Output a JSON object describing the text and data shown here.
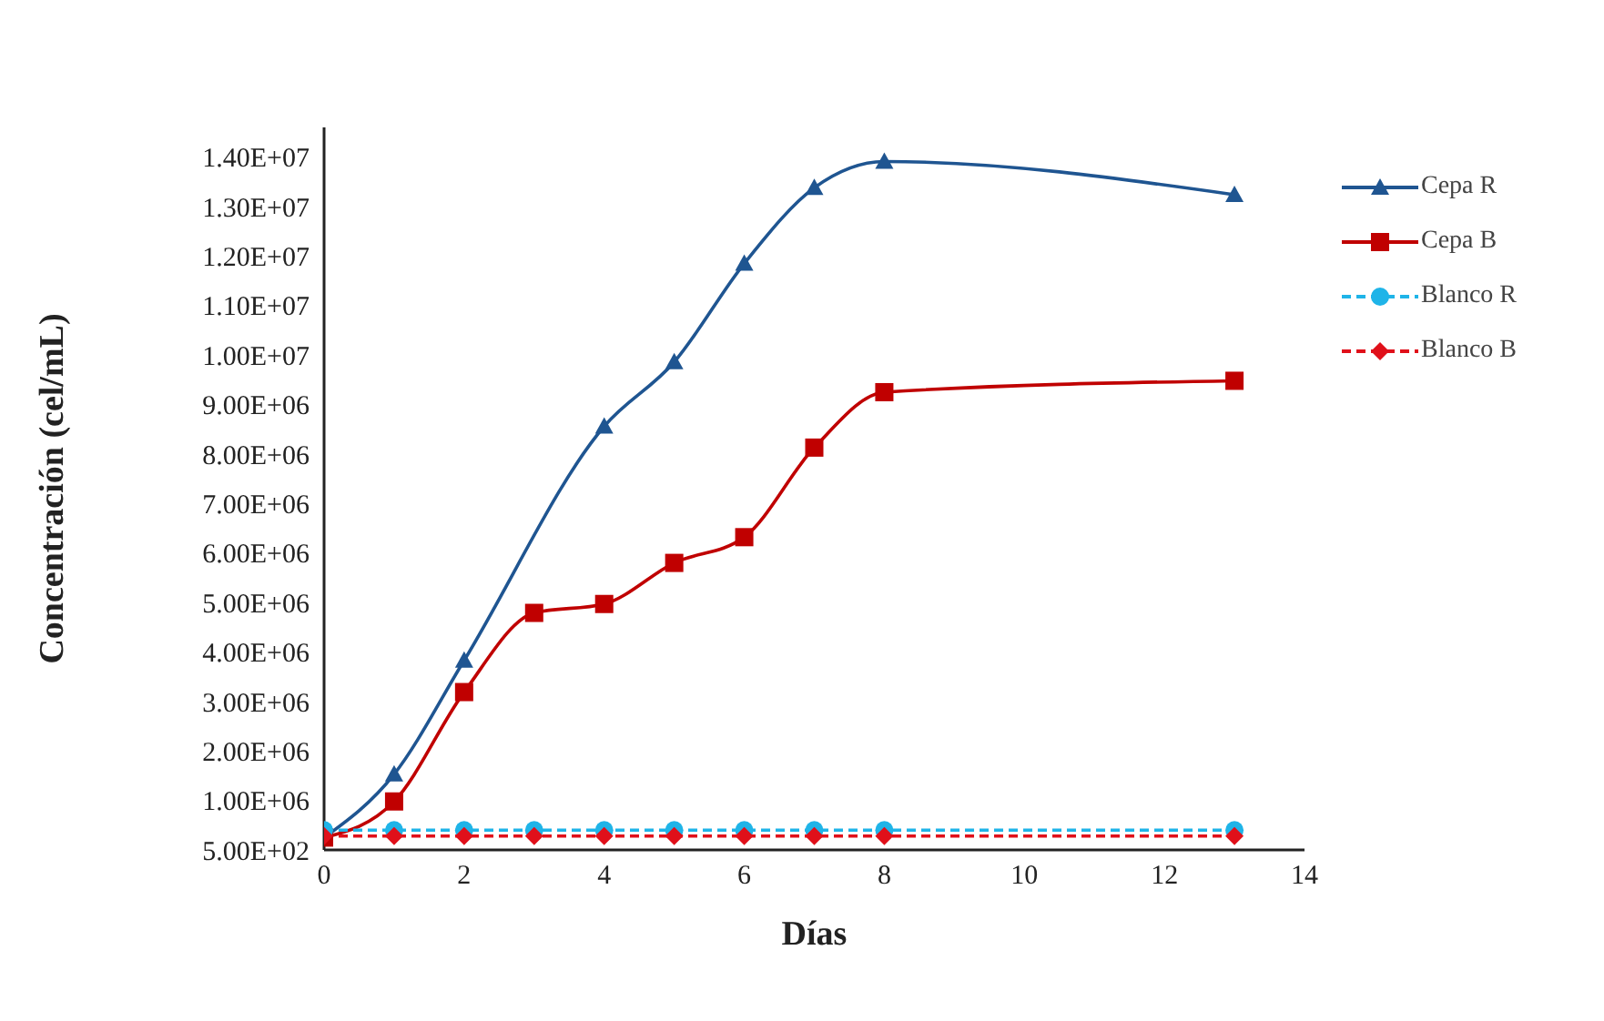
{
  "chart_data": {
    "type": "line",
    "xlabel": "Días",
    "ylabel": "Concentración (cel/mL)",
    "x": [
      0,
      1,
      2,
      3,
      4,
      5,
      6,
      7,
      8,
      13
    ],
    "xlim": [
      0,
      14
    ],
    "xticks": [
      0,
      2,
      4,
      6,
      8,
      10,
      12,
      14
    ],
    "ylim": [
      500,
      14600000
    ],
    "yticks": [
      {
        "value": 500,
        "label": "5.00E+02"
      },
      {
        "value": 1000000,
        "label": "1.00E+06"
      },
      {
        "value": 2000000,
        "label": "2.00E+06"
      },
      {
        "value": 3000000,
        "label": "3.00E+06"
      },
      {
        "value": 4000000,
        "label": "4.00E+06"
      },
      {
        "value": 5000000,
        "label": "5.00E+06"
      },
      {
        "value": 6000000,
        "label": "6.00E+06"
      },
      {
        "value": 7000000,
        "label": "7.00E+06"
      },
      {
        "value": 8000000,
        "label": "8.00E+06"
      },
      {
        "value": 9000000,
        "label": "9.00E+06"
      },
      {
        "value": 10000000,
        "label": "1.00E+07"
      },
      {
        "value": 11000000,
        "label": "1.10E+07"
      },
      {
        "value": 12000000,
        "label": "1.20E+07"
      },
      {
        "value": 13000000,
        "label": "1.30E+07"
      },
      {
        "value": 14000000,
        "label": "1.40E+07"
      }
    ],
    "grid": false,
    "legend": "right",
    "series": [
      {
        "name": "Cepa R",
        "color": "#1f5591",
        "marker": "triangle",
        "line_style": "solid",
        "values": [
          250000,
          1530000,
          3830000,
          null,
          8560000,
          9860000,
          11850000,
          13380000,
          13910000,
          13240000
        ]
      },
      {
        "name": "Cepa B",
        "color": "#c00000",
        "marker": "square",
        "line_style": "solid",
        "values": [
          250000,
          980000,
          3190000,
          4790000,
          4970000,
          5800000,
          6320000,
          8130000,
          9250000,
          9480000
        ]
      },
      {
        "name": "Blanco R",
        "color": "#1fb4e8",
        "marker": "circle",
        "line_style": "dashed",
        "values": [
          400000,
          400000,
          400000,
          400000,
          400000,
          400000,
          400000,
          400000,
          400000,
          400000
        ]
      },
      {
        "name": "Blanco B",
        "color": "#e0101a",
        "marker": "diamond",
        "line_style": "dashed",
        "values": [
          280000,
          280000,
          280000,
          280000,
          280000,
          280000,
          280000,
          280000,
          280000,
          280000
        ]
      }
    ]
  }
}
